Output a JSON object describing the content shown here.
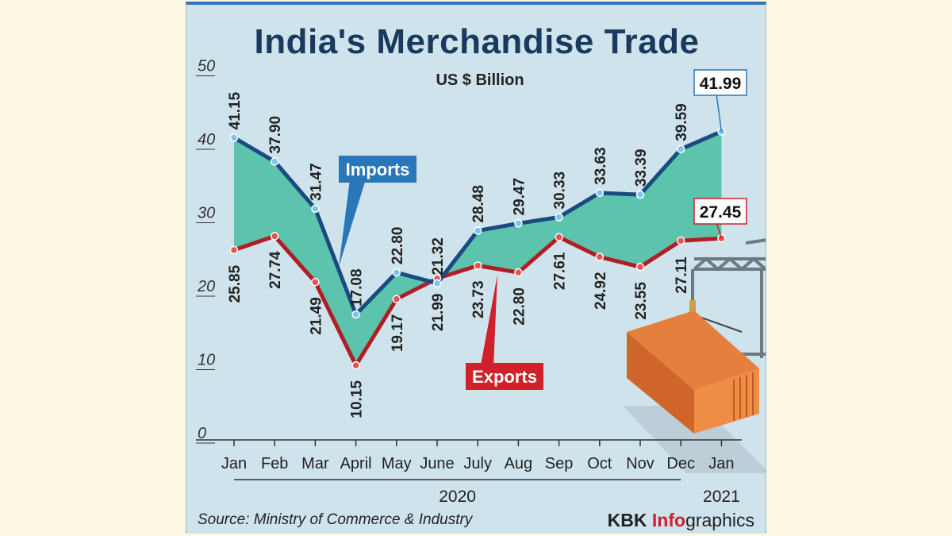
{
  "chart_data": {
    "type": "line",
    "title": "India's Merchandise Trade",
    "subtitle": "US $ Billion",
    "categories": [
      "Jan",
      "Feb",
      "Mar",
      "April",
      "May",
      "June",
      "July",
      "Aug",
      "Sep",
      "Oct",
      "Nov",
      "Dec",
      "Jan"
    ],
    "year_groups": [
      {
        "label": "2020",
        "from": 0,
        "to": 11
      },
      {
        "label": "2021",
        "from": 12,
        "to": 12
      }
    ],
    "y_ticks": [
      "0",
      "10",
      "20",
      "30",
      "40",
      "50"
    ],
    "ylim": [
      0,
      50
    ],
    "series": [
      {
        "name": "Imports",
        "color": "#1b4a80",
        "values": [
          41.15,
          37.9,
          31.47,
          17.08,
          22.8,
          21.32,
          28.48,
          29.47,
          30.33,
          33.63,
          33.39,
          39.59,
          41.99
        ],
        "labels": [
          "41.15",
          "37.90",
          "31.47",
          "17.08",
          "22.80",
          "21.32",
          "28.48",
          "29.47",
          "30.33",
          "33.63",
          "33.39",
          "39.59",
          "41.99"
        ]
      },
      {
        "name": "Exports",
        "color": "#b01e24",
        "values": [
          25.85,
          27.74,
          21.49,
          10.15,
          19.17,
          21.99,
          23.73,
          22.8,
          27.61,
          24.92,
          23.55,
          27.11,
          27.45
        ],
        "labels": [
          "25.85",
          "27.74",
          "21.49",
          "10.15",
          "19.17",
          "21.99",
          "23.73",
          "22.80",
          "27.61",
          "24.92",
          "23.55",
          "27.11",
          "27.45"
        ]
      }
    ],
    "fill_color": "#5cc4ad",
    "grid": false,
    "legend": "inline callouts"
  },
  "footer": {
    "source": "Source: Ministry of Commerce & Industry",
    "brand_kbk": "KBK ",
    "brand_info": "Info",
    "brand_graphics": "graphics"
  }
}
